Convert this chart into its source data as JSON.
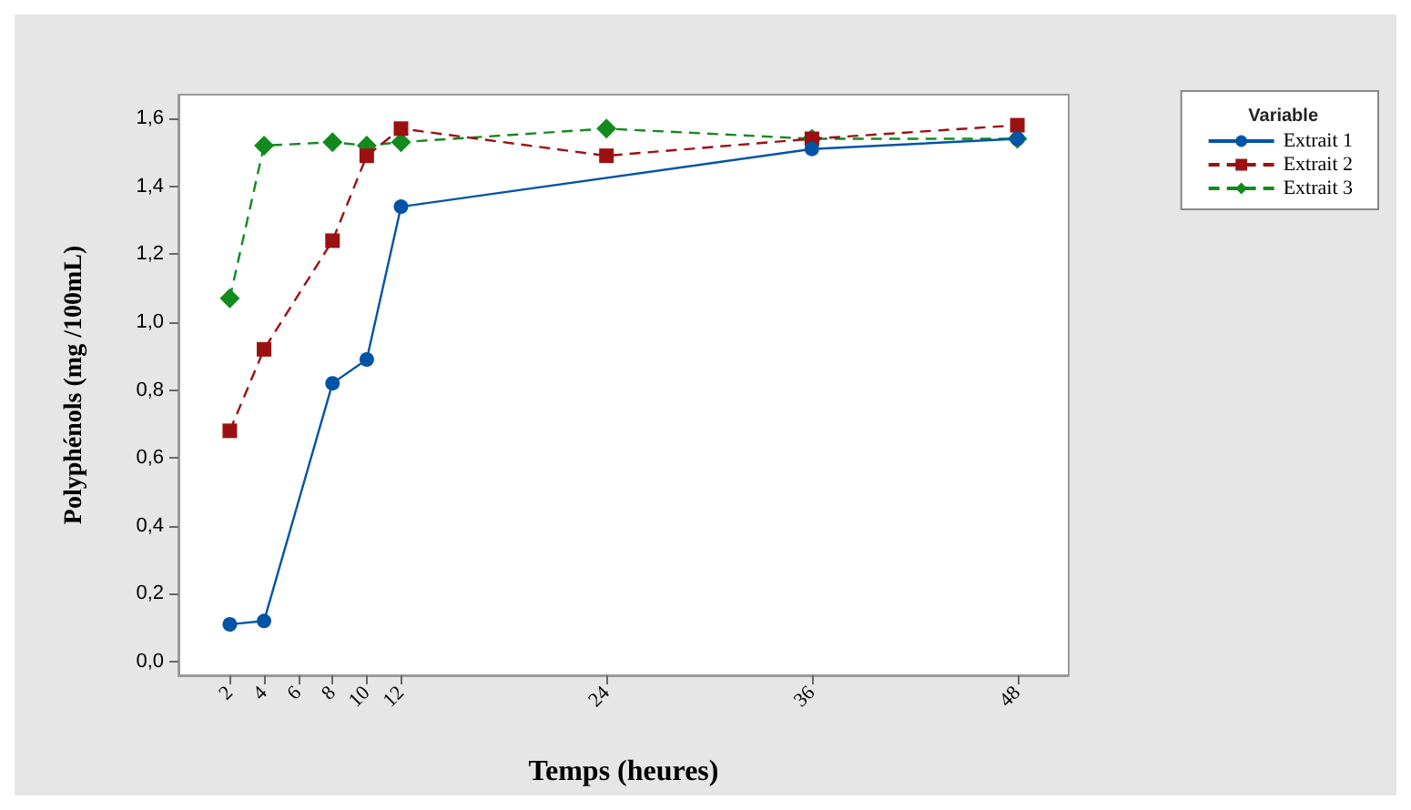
{
  "chart_data": {
    "type": "line",
    "xlabel": "Temps (heures)",
    "ylabel": "Polyphénols (mg /100mL)",
    "legend_title": "Variable",
    "legend": "right",
    "grid": false,
    "xlim": [
      -1,
      51
    ],
    "xticks": [
      2,
      4,
      6,
      8,
      10,
      12,
      24,
      36,
      48
    ],
    "ylim": [
      -0.04,
      1.67
    ],
    "yticks": [
      {
        "value": 0,
        "label": "0,0"
      },
      {
        "value": 0.2,
        "label": "0,2"
      },
      {
        "value": 0.4,
        "label": "0,4"
      },
      {
        "value": 0.6,
        "label": "0,6"
      },
      {
        "value": 0.8,
        "label": "0,8"
      },
      {
        "value": 1.0,
        "label": "1,0"
      },
      {
        "value": 1.2,
        "label": "1,2"
      },
      {
        "value": 1.4,
        "label": "1,4"
      },
      {
        "value": 1.6,
        "label": "1,6"
      }
    ],
    "series": [
      {
        "name": "Extrait 1",
        "color": "#0054a6",
        "marker": "circle",
        "line_style": "solid",
        "x": [
          2,
          4,
          8,
          10,
          12,
          36,
          48
        ],
        "values": [
          0.11,
          0.12,
          0.82,
          0.89,
          1.34,
          1.51,
          1.54
        ]
      },
      {
        "name": "Extrait 2",
        "color": "#9b1111",
        "marker": "square",
        "line_style": "dashed",
        "x": [
          2,
          4,
          8,
          10,
          12,
          24,
          36,
          48
        ],
        "values": [
          0.68,
          0.92,
          1.24,
          1.49,
          1.57,
          1.49,
          1.54,
          1.58
        ]
      },
      {
        "name": "Extrait 3",
        "color": "#138a1e",
        "marker": "diamond",
        "line_style": "dashed",
        "x": [
          2,
          4,
          8,
          10,
          12,
          24,
          36,
          48
        ],
        "values": [
          1.07,
          1.52,
          1.53,
          1.52,
          1.53,
          1.57,
          1.54,
          1.54
        ]
      }
    ]
  }
}
